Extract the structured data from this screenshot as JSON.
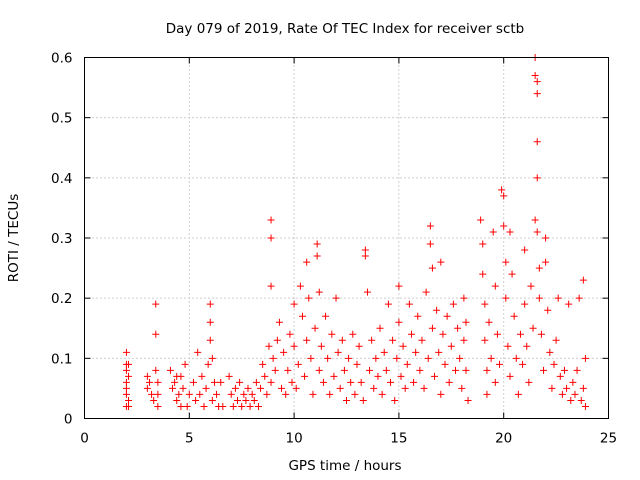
{
  "chart_data": {
    "type": "scatter",
    "title": "Day 079 of 2019, Rate Of TEC Index for receiver sctb",
    "xlabel": "GPS time / hours",
    "ylabel": "ROTI / TECUs",
    "xlim": [
      0,
      25
    ],
    "ylim": [
      0,
      0.6
    ],
    "xticks": [
      0,
      5,
      10,
      15,
      20,
      25
    ],
    "yticks": [
      0,
      0.1,
      0.2,
      0.3,
      0.4,
      0.5,
      0.6
    ],
    "xtick_labels": [
      "0",
      "5",
      "10",
      "15",
      "20",
      "25"
    ],
    "ytick_labels": [
      "0",
      "0.1",
      "0.2",
      "0.3",
      "0.4",
      "0.5",
      "0.6"
    ],
    "grid": true,
    "marker": "plus",
    "series": [
      {
        "name": "sctb",
        "color": "#ff0000",
        "points": [
          [
            2.0,
            0.11
          ],
          [
            2.0,
            0.09
          ],
          [
            2.0,
            0.08
          ],
          [
            2.0,
            0.06
          ],
          [
            2.0,
            0.05
          ],
          [
            2.0,
            0.04
          ],
          [
            2.0,
            0.02
          ],
          [
            2.1,
            0.07
          ],
          [
            2.1,
            0.03
          ],
          [
            2.1,
            0.02
          ],
          [
            2.1,
            0.09
          ],
          [
            3.0,
            0.07
          ],
          [
            3.0,
            0.05
          ],
          [
            3.1,
            0.06
          ],
          [
            3.2,
            0.04
          ],
          [
            3.3,
            0.03
          ],
          [
            3.4,
            0.19
          ],
          [
            3.4,
            0.14
          ],
          [
            3.5,
            0.06
          ],
          [
            3.5,
            0.04
          ],
          [
            3.5,
            0.02
          ],
          [
            3.4,
            0.08
          ],
          [
            4.1,
            0.08
          ],
          [
            4.2,
            0.05
          ],
          [
            4.3,
            0.06
          ],
          [
            4.4,
            0.03
          ],
          [
            4.5,
            0.04
          ],
          [
            4.6,
            0.07
          ],
          [
            4.7,
            0.05
          ],
          [
            4.8,
            0.09
          ],
          [
            4.9,
            0.02
          ],
          [
            5.0,
            0.04
          ],
          [
            4.4,
            0.07
          ],
          [
            4.6,
            0.02
          ],
          [
            5.2,
            0.06
          ],
          [
            5.3,
            0.03
          ],
          [
            5.4,
            0.11
          ],
          [
            5.5,
            0.04
          ],
          [
            5.6,
            0.07
          ],
          [
            5.7,
            0.02
          ],
          [
            5.8,
            0.05
          ],
          [
            5.9,
            0.09
          ],
          [
            6.0,
            0.19
          ],
          [
            6.0,
            0.16
          ],
          [
            6.0,
            0.13
          ],
          [
            6.1,
            0.1
          ],
          [
            6.1,
            0.03
          ],
          [
            6.2,
            0.06
          ],
          [
            6.3,
            0.04
          ],
          [
            6.4,
            0.02
          ],
          [
            6.5,
            0.06
          ],
          [
            6.6,
            0.02
          ],
          [
            6.9,
            0.07
          ],
          [
            7.0,
            0.04
          ],
          [
            7.1,
            0.02
          ],
          [
            7.2,
            0.05
          ],
          [
            7.3,
            0.03
          ],
          [
            7.4,
            0.06
          ],
          [
            7.5,
            0.02
          ],
          [
            7.6,
            0.04
          ],
          [
            7.7,
            0.03
          ],
          [
            7.8,
            0.05
          ],
          [
            7.9,
            0.02
          ],
          [
            8.0,
            0.04
          ],
          [
            8.1,
            0.03
          ],
          [
            8.2,
            0.06
          ],
          [
            8.3,
            0.02
          ],
          [
            8.4,
            0.05
          ],
          [
            8.5,
            0.09
          ],
          [
            8.6,
            0.07
          ],
          [
            8.7,
            0.04
          ],
          [
            8.9,
            0.33
          ],
          [
            8.9,
            0.3
          ],
          [
            8.9,
            0.22
          ],
          [
            8.8,
            0.12
          ],
          [
            8.9,
            0.06
          ],
          [
            9.0,
            0.1
          ],
          [
            9.1,
            0.08
          ],
          [
            9.2,
            0.13
          ],
          [
            9.3,
            0.16
          ],
          [
            9.4,
            0.05
          ],
          [
            9.5,
            0.11
          ],
          [
            9.6,
            0.04
          ],
          [
            9.7,
            0.08
          ],
          [
            9.8,
            0.14
          ],
          [
            9.9,
            0.06
          ],
          [
            10.0,
            0.19
          ],
          [
            10.0,
            0.12
          ],
          [
            10.1,
            0.05
          ],
          [
            10.2,
            0.09
          ],
          [
            10.3,
            0.22
          ],
          [
            10.4,
            0.17
          ],
          [
            10.5,
            0.07
          ],
          [
            10.6,
            0.13
          ],
          [
            10.6,
            0.26
          ],
          [
            10.7,
            0.2
          ],
          [
            10.8,
            0.1
          ],
          [
            10.9,
            0.04
          ],
          [
            11.0,
            0.15
          ],
          [
            11.1,
            0.29
          ],
          [
            11.1,
            0.27
          ],
          [
            11.2,
            0.21
          ],
          [
            11.2,
            0.08
          ],
          [
            11.3,
            0.12
          ],
          [
            11.4,
            0.06
          ],
          [
            11.5,
            0.17
          ],
          [
            11.6,
            0.1
          ],
          [
            11.7,
            0.04
          ],
          [
            11.8,
            0.14
          ],
          [
            11.9,
            0.07
          ],
          [
            12.0,
            0.2
          ],
          [
            12.1,
            0.11
          ],
          [
            12.2,
            0.05
          ],
          [
            12.3,
            0.13
          ],
          [
            12.4,
            0.08
          ],
          [
            12.5,
            0.03
          ],
          [
            12.6,
            0.1
          ],
          [
            12.7,
            0.06
          ],
          [
            12.8,
            0.14
          ],
          [
            12.9,
            0.04
          ],
          [
            13.0,
            0.09
          ],
          [
            13.1,
            0.12
          ],
          [
            13.2,
            0.06
          ],
          [
            13.3,
            0.03
          ],
          [
            13.4,
            0.28
          ],
          [
            13.4,
            0.27
          ],
          [
            13.5,
            0.21
          ],
          [
            13.6,
            0.08
          ],
          [
            13.7,
            0.13
          ],
          [
            13.8,
            0.05
          ],
          [
            13.9,
            0.1
          ],
          [
            14.0,
            0.07
          ],
          [
            14.1,
            0.15
          ],
          [
            14.2,
            0.04
          ],
          [
            14.3,
            0.11
          ],
          [
            14.4,
            0.08
          ],
          [
            14.5,
            0.19
          ],
          [
            14.6,
            0.06
          ],
          [
            14.7,
            0.13
          ],
          [
            14.8,
            0.03
          ],
          [
            14.9,
            0.1
          ],
          [
            15.0,
            0.22
          ],
          [
            15.0,
            0.16
          ],
          [
            15.1,
            0.07
          ],
          [
            15.2,
            0.12
          ],
          [
            15.3,
            0.05
          ],
          [
            15.4,
            0.09
          ],
          [
            15.5,
            0.19
          ],
          [
            15.6,
            0.14
          ],
          [
            15.7,
            0.06
          ],
          [
            15.8,
            0.11
          ],
          [
            15.9,
            0.17
          ],
          [
            16.0,
            0.08
          ],
          [
            16.1,
            0.13
          ],
          [
            16.2,
            0.05
          ],
          [
            16.3,
            0.21
          ],
          [
            16.4,
            0.1
          ],
          [
            16.5,
            0.32
          ],
          [
            16.5,
            0.29
          ],
          [
            16.6,
            0.25
          ],
          [
            16.6,
            0.15
          ],
          [
            16.7,
            0.07
          ],
          [
            16.8,
            0.18
          ],
          [
            16.9,
            0.11
          ],
          [
            17.0,
            0.26
          ],
          [
            17.0,
            0.04
          ],
          [
            17.1,
            0.14
          ],
          [
            17.2,
            0.09
          ],
          [
            17.3,
            0.17
          ],
          [
            17.4,
            0.06
          ],
          [
            17.5,
            0.12
          ],
          [
            17.6,
            0.19
          ],
          [
            17.7,
            0.08
          ],
          [
            17.8,
            0.15
          ],
          [
            17.9,
            0.1
          ],
          [
            18.0,
            0.05
          ],
          [
            18.1,
            0.13
          ],
          [
            18.2,
            0.08
          ],
          [
            18.3,
            0.03
          ],
          [
            18.1,
            0.2
          ],
          [
            18.2,
            0.16
          ],
          [
            18.9,
            0.33
          ],
          [
            19.0,
            0.29
          ],
          [
            19.0,
            0.24
          ],
          [
            19.1,
            0.19
          ],
          [
            19.1,
            0.13
          ],
          [
            19.2,
            0.08
          ],
          [
            19.2,
            0.04
          ],
          [
            19.3,
            0.16
          ],
          [
            19.4,
            0.1
          ],
          [
            19.5,
            0.31
          ],
          [
            19.6,
            0.22
          ],
          [
            19.6,
            0.06
          ],
          [
            19.7,
            0.14
          ],
          [
            19.8,
            0.09
          ],
          [
            19.9,
            0.38
          ],
          [
            20.0,
            0.37
          ],
          [
            20.0,
            0.32
          ],
          [
            20.1,
            0.26
          ],
          [
            20.1,
            0.2
          ],
          [
            20.2,
            0.12
          ],
          [
            20.3,
            0.07
          ],
          [
            20.3,
            0.31
          ],
          [
            20.4,
            0.24
          ],
          [
            20.5,
            0.17
          ],
          [
            20.6,
            0.1
          ],
          [
            20.7,
            0.04
          ],
          [
            20.8,
            0.14
          ],
          [
            20.9,
            0.09
          ],
          [
            21.0,
            0.28
          ],
          [
            21.0,
            0.19
          ],
          [
            21.1,
            0.12
          ],
          [
            21.2,
            0.06
          ],
          [
            21.3,
            0.22
          ],
          [
            21.4,
            0.15
          ],
          [
            21.5,
            0.6
          ],
          [
            21.5,
            0.57
          ],
          [
            21.6,
            0.56
          ],
          [
            21.6,
            0.54
          ],
          [
            21.6,
            0.46
          ],
          [
            21.6,
            0.4
          ],
          [
            21.5,
            0.33
          ],
          [
            21.6,
            0.31
          ],
          [
            21.7,
            0.25
          ],
          [
            21.7,
            0.2
          ],
          [
            21.8,
            0.14
          ],
          [
            21.9,
            0.08
          ],
          [
            22.0,
            0.3
          ],
          [
            22.0,
            0.26
          ],
          [
            22.1,
            0.18
          ],
          [
            22.2,
            0.11
          ],
          [
            22.3,
            0.05
          ],
          [
            22.4,
            0.09
          ],
          [
            22.5,
            0.13
          ],
          [
            22.6,
            0.2
          ],
          [
            22.7,
            0.07
          ],
          [
            22.8,
            0.04
          ],
          [
            22.9,
            0.08
          ],
          [
            23.0,
            0.05
          ],
          [
            23.1,
            0.19
          ],
          [
            23.2,
            0.03
          ],
          [
            23.3,
            0.06
          ],
          [
            23.4,
            0.04
          ],
          [
            23.5,
            0.08
          ],
          [
            23.6,
            0.2
          ],
          [
            23.7,
            0.03
          ],
          [
            23.8,
            0.23
          ],
          [
            23.8,
            0.05
          ],
          [
            23.9,
            0.1
          ],
          [
            23.9,
            0.02
          ]
        ]
      }
    ]
  }
}
